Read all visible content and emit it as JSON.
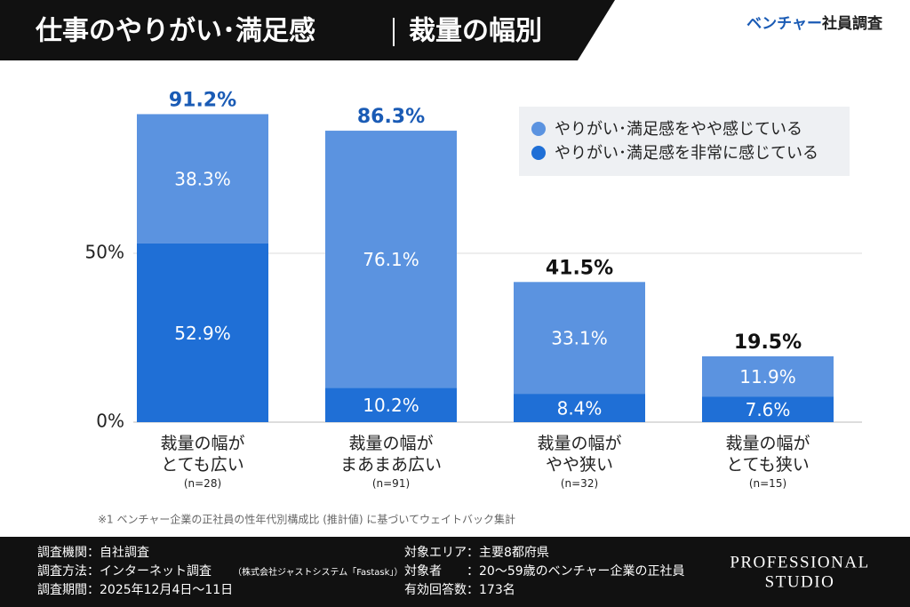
{
  "header": {
    "title": "仕事のやりがい･満足感",
    "subtitle": "裁量の幅別",
    "brand": [
      "ベンチャー",
      "社員調査"
    ]
  },
  "chart_data": {
    "type": "stacked-bar",
    "categories": [
      "裁量の幅が\nとても広い",
      "裁量の幅が\nまあまあ広い",
      "裁量の幅が\nやや狭い",
      "裁量の幅が\nとても狭い"
    ],
    "sample_sizes": [
      "(n=28)",
      "(n=91)",
      "(n=32)",
      "(n=15)"
    ],
    "series": [
      {
        "name": "やりがい･満足感を非常に感じている",
        "color": "#1f6fd6",
        "values": [
          52.9,
          10.2,
          8.4,
          7.6
        ],
        "value_labels": [
          "52.9%",
          "10.2%",
          "8.4%",
          "7.6%"
        ]
      },
      {
        "name": "やりがい･満足感をやや感じている",
        "color": "#5b93e0",
        "values": [
          38.3,
          76.1,
          33.1,
          11.9
        ],
        "value_labels": [
          "38.3%",
          "76.1%",
          "33.1%",
          "11.9%"
        ]
      }
    ],
    "totals": [
      91.2,
      86.3,
      41.5,
      19.5
    ],
    "total_labels": [
      "91.2%",
      "86.3%",
      "41.5%",
      "19.5%"
    ],
    "total_colors": [
      "#1a5bb5",
      "#1a5bb5",
      "#111111",
      "#111111"
    ],
    "ylim": [
      0,
      100
    ],
    "yticks": [
      {
        "value": 0,
        "label": "0%"
      },
      {
        "value": 50,
        "label": "50%"
      }
    ],
    "grid": true,
    "legend": "top-right"
  },
  "note": "※1 ベンチャー企業の正社員の性年代別構成比 (推計値) に基づいてウェイトバック集計",
  "footer": {
    "left": [
      "調査機関：自社調査",
      "調査方法：インターネット調査",
      "調査期間：2025年12月4日〜11日"
    ],
    "method_note": "（株式会社ジャストシステム「Fastask」）",
    "right": [
      "対象エリア：主要8都府県",
      "対象者　　：20〜59歳のベンチャー企業の正社員",
      "有効回答数：173名"
    ],
    "logo": [
      "PROFESSIONAL",
      "STUDIO"
    ]
  }
}
